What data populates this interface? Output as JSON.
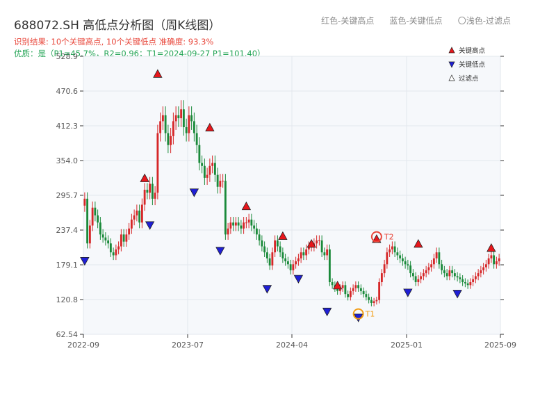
{
  "header": {
    "title": "688072.SH 高低点分析图（周K线图）",
    "result_line": "识别结果: 10个关键高点, 10个关键低点   准确度: 93.3%",
    "quality_line": "优质：是（P1=45.7%，R2=0.96；T1=2024-09-27 P1=101.40）"
  },
  "top_legend": {
    "red": "红色-关键高点",
    "blue": "蓝色-关键低点",
    "light": "〇浅色-过滤点"
  },
  "colors": {
    "up": "#d62728",
    "down": "#1a8a3a",
    "high_marker": "#e8161b",
    "low_marker": "#1f1fd6",
    "t1": "#f39c12",
    "t2": "#e8463a",
    "plot_bg": "#f6f8fb"
  },
  "chart_data": {
    "type": "candlestick",
    "title": "688072.SH 高低点分析图（周K线图）",
    "ylim": [
      62.54,
      528.9
    ],
    "y_ticks": [
      "62.54",
      "120.8",
      "179.1",
      "237.4",
      "295.7",
      "354.0",
      "412.3",
      "470.6",
      "528.9"
    ],
    "x_ticks": [
      "2022-09",
      "2023-07",
      "2024-04",
      "2025-01",
      "2025-09"
    ],
    "x_tick_positions": [
      0,
      40,
      80,
      124,
      160
    ],
    "closes": [
      290,
      215,
      245,
      275,
      262,
      250,
      230,
      225,
      220,
      215,
      200,
      195,
      205,
      210,
      230,
      218,
      230,
      240,
      255,
      262,
      270,
      250,
      280,
      305,
      300,
      315,
      290,
      300,
      400,
      420,
      430,
      400,
      380,
      395,
      420,
      430,
      425,
      440,
      410,
      400,
      430,
      420,
      400,
      380,
      350,
      345,
      325,
      330,
      345,
      350,
      330,
      310,
      320,
      320,
      230,
      240,
      250,
      245,
      250,
      245,
      240,
      250,
      250,
      255,
      245,
      240,
      230,
      220,
      210,
      200,
      190,
      178,
      200,
      220,
      210,
      200,
      190,
      185,
      180,
      170,
      180,
      185,
      190,
      200,
      195,
      205,
      210,
      210,
      215,
      220,
      220,
      200,
      195,
      205,
      150,
      145,
      140,
      135,
      140,
      145,
      130,
      125,
      135,
      140,
      145,
      140,
      135,
      130,
      125,
      120,
      115,
      118,
      120,
      150,
      165,
      180,
      200,
      205,
      210,
      200,
      195,
      190,
      185,
      180,
      178,
      165,
      160,
      150,
      155,
      160,
      165,
      170,
      175,
      180,
      190,
      200,
      180,
      170,
      165,
      160,
      170,
      165,
      160,
      158,
      155,
      150,
      148,
      145,
      150,
      155,
      160,
      165,
      170,
      175,
      180,
      190,
      195,
      180,
      185,
      190
    ],
    "key_highs": [
      {
        "i": 23,
        "v": 315
      },
      {
        "i": 28,
        "v": 490
      },
      {
        "i": 48,
        "v": 400
      },
      {
        "i": 62,
        "v": 268
      },
      {
        "i": 76,
        "v": 218
      },
      {
        "i": 87,
        "v": 205
      },
      {
        "i": 97,
        "v": 135
      },
      {
        "i": 112,
        "v": 213
      },
      {
        "i": 128,
        "v": 205
      },
      {
        "i": 156,
        "v": 198
      }
    ],
    "key_lows": [
      {
        "i": 0,
        "v": 195
      },
      {
        "i": 25,
        "v": 255
      },
      {
        "i": 42,
        "v": 310
      },
      {
        "i": 52,
        "v": 212
      },
      {
        "i": 70,
        "v": 148
      },
      {
        "i": 82,
        "v": 165
      },
      {
        "i": 93,
        "v": 110
      },
      {
        "i": 105,
        "v": 100
      },
      {
        "i": 124,
        "v": 142
      },
      {
        "i": 143,
        "v": 140
      }
    ],
    "t1": {
      "label": "T1",
      "i": 105,
      "v": 101.4
    },
    "t2": {
      "label": "T2",
      "i": 112,
      "v": 218
    },
    "legend": [
      {
        "label": "关键高点",
        "marker": "triangle-up",
        "color": "#e8161b"
      },
      {
        "label": "关键低点",
        "marker": "triangle-down",
        "color": "#1f1fd6"
      },
      {
        "label": "过滤点",
        "marker": "triangle-up-light",
        "color": "#ffffff"
      }
    ]
  }
}
